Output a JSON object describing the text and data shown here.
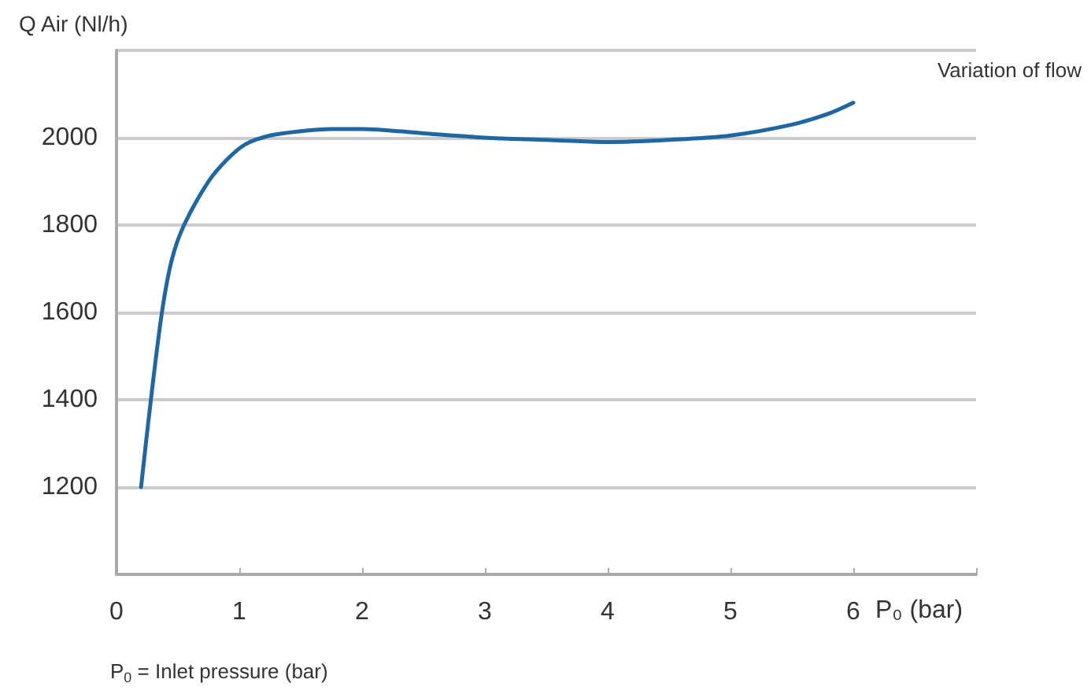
{
  "chart_data": {
    "type": "line",
    "xlabel": "P₀ (bar)",
    "ylabel": "Q Air (Nl/h)",
    "annotations": [
      "Variation of flow",
      "P$_{0}$ = Inlet pressure (bar)"
    ],
    "series": [
      {
        "color": "#1f67a3",
        "x": [
          0.2,
          0.28,
          0.37,
          0.45,
          0.55,
          0.75,
          0.9,
          1.05,
          1.25,
          1.5,
          1.75,
          2.0,
          2.5,
          3.0,
          3.5,
          4.0,
          4.5,
          5.0,
          5.5,
          5.8,
          6.0
        ],
        "values": [
          1200,
          1400,
          1600,
          1720,
          1800,
          1900,
          1950,
          1985,
          2005,
          2015,
          2020,
          2020,
          2010,
          2000,
          1995,
          1990,
          1995,
          2005,
          2030,
          2055,
          2080
        ]
      }
    ],
    "xlim": [
      0,
      7
    ],
    "xticks": [
      0,
      1,
      2,
      3,
      4,
      5,
      6,
      {
        "value": 7,
        "label": null
      }
    ],
    "ylim": [
      1000,
      2200
    ],
    "yticks": [
      {
        "value": 1000,
        "label": null
      },
      1200,
      1400,
      1600,
      1800,
      2000,
      {
        "value": 2200,
        "label": null
      }
    ],
    "grid": "y"
  }
}
